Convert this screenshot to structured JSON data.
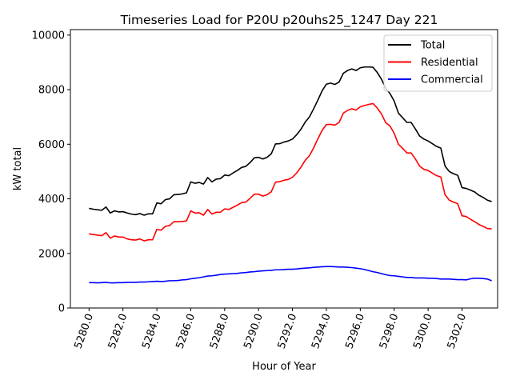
{
  "chart_data": {
    "type": "line",
    "title": "Timeseries Load for P20U p20uhs25_1247  Day 221",
    "xlabel": "Hour of Year",
    "ylabel": "kW total",
    "xlim": [
      5278.9,
      5304.1
    ],
    "ylim": [
      0,
      10200
    ],
    "grid": false,
    "legend_position": "top-right",
    "x_ticks": [
      5280,
      5282,
      5284,
      5286,
      5288,
      5290,
      5292,
      5294,
      5296,
      5298,
      5300,
      5302
    ],
    "x_tick_labels": [
      "5280.0",
      "5282.0",
      "5284.0",
      "5286.0",
      "5288.0",
      "5290.0",
      "5292.0",
      "5294.0",
      "5296.0",
      "5298.0",
      "5300.0",
      "5302.0"
    ],
    "y_ticks": [
      0,
      2000,
      4000,
      6000,
      8000,
      10000
    ],
    "y_tick_labels": [
      "0",
      "2000",
      "4000",
      "6000",
      "8000",
      "10000"
    ],
    "x": [
      5280.0,
      5280.25,
      5280.5,
      5280.75,
      5281.0,
      5281.25,
      5281.5,
      5281.75,
      5282.0,
      5282.25,
      5282.5,
      5282.75,
      5283.0,
      5283.25,
      5283.5,
      5283.75,
      5284.0,
      5284.25,
      5284.5,
      5284.75,
      5285.0,
      5285.25,
      5285.5,
      5285.75,
      5286.0,
      5286.25,
      5286.5,
      5286.75,
      5287.0,
      5287.25,
      5287.5,
      5287.75,
      5288.0,
      5288.25,
      5288.5,
      5288.75,
      5289.0,
      5289.25,
      5289.5,
      5289.75,
      5290.0,
      5290.25,
      5290.5,
      5290.75,
      5291.0,
      5291.25,
      5291.5,
      5291.75,
      5292.0,
      5292.25,
      5292.5,
      5292.75,
      5293.0,
      5293.25,
      5293.5,
      5293.75,
      5294.0,
      5294.25,
      5294.5,
      5294.75,
      5295.0,
      5295.25,
      5295.5,
      5295.75,
      5296.0,
      5296.25,
      5296.5,
      5296.75,
      5297.0,
      5297.25,
      5297.5,
      5297.75,
      5298.0,
      5298.25,
      5298.5,
      5298.75,
      5299.0,
      5299.25,
      5299.5,
      5299.75,
      5300.0,
      5300.25,
      5300.5,
      5300.75,
      5301.0,
      5301.25,
      5301.5,
      5301.75,
      5302.0,
      5302.25,
      5302.5,
      5302.75,
      5303.0,
      5303.25,
      5303.5,
      5303.75
    ],
    "series": [
      {
        "name": "Total",
        "color": "#000000",
        "values": [
          3650,
          3620,
          3600,
          3580,
          3700,
          3480,
          3560,
          3520,
          3530,
          3480,
          3440,
          3420,
          3460,
          3400,
          3450,
          3450,
          3850,
          3820,
          3970,
          4000,
          4150,
          4160,
          4180,
          4220,
          4620,
          4570,
          4600,
          4540,
          4780,
          4620,
          4720,
          4740,
          4870,
          4850,
          4950,
          5040,
          5150,
          5190,
          5330,
          5500,
          5520,
          5460,
          5520,
          5650,
          6010,
          6020,
          6080,
          6120,
          6190,
          6350,
          6550,
          6810,
          7000,
          7300,
          7620,
          7960,
          8200,
          8240,
          8190,
          8280,
          8600,
          8700,
          8760,
          8700,
          8800,
          8830,
          8830,
          8820,
          8630,
          8380,
          8050,
          7860,
          7580,
          7140,
          6970,
          6800,
          6800,
          6560,
          6300,
          6190,
          6120,
          6020,
          5920,
          5860,
          5200,
          5000,
          4920,
          4860,
          4410,
          4380,
          4320,
          4250,
          4130,
          4050,
          3950,
          3900
        ]
      },
      {
        "name": "Residential",
        "color": "#ff0000",
        "values": [
          2720,
          2690,
          2670,
          2650,
          2760,
          2560,
          2640,
          2600,
          2600,
          2530,
          2500,
          2490,
          2530,
          2460,
          2500,
          2500,
          2880,
          2850,
          2990,
          3020,
          3160,
          3160,
          3170,
          3190,
          3560,
          3480,
          3490,
          3400,
          3610,
          3440,
          3510,
          3510,
          3630,
          3610,
          3690,
          3770,
          3860,
          3880,
          4020,
          4170,
          4170,
          4100,
          4150,
          4260,
          4610,
          4630,
          4680,
          4710,
          4790,
          4950,
          5160,
          5410,
          5580,
          5870,
          6200,
          6510,
          6720,
          6730,
          6700,
          6800,
          7140,
          7240,
          7300,
          7250,
          7370,
          7420,
          7460,
          7490,
          7330,
          7110,
          6790,
          6670,
          6400,
          6000,
          5850,
          5680,
          5680,
          5460,
          5200,
          5080,
          5040,
          4940,
          4850,
          4800,
          4150,
          3950,
          3880,
          3820,
          3380,
          3350,
          3250,
          3160,
          3060,
          2990,
          2910,
          2900
        ]
      },
      {
        "name": "Commercial",
        "color": "#0000ff",
        "values": [
          930,
          930,
          920,
          930,
          940,
          920,
          920,
          930,
          930,
          940,
          940,
          940,
          950,
          950,
          960,
          970,
          980,
          970,
          980,
          1000,
          1000,
          1010,
          1030,
          1040,
          1070,
          1090,
          1110,
          1140,
          1170,
          1180,
          1200,
          1230,
          1240,
          1250,
          1260,
          1270,
          1290,
          1300,
          1320,
          1330,
          1350,
          1360,
          1370,
          1380,
          1400,
          1400,
          1410,
          1420,
          1420,
          1430,
          1450,
          1460,
          1470,
          1490,
          1500,
          1510,
          1520,
          1520,
          1510,
          1500,
          1500,
          1490,
          1480,
          1460,
          1440,
          1410,
          1370,
          1330,
          1300,
          1260,
          1220,
          1190,
          1180,
          1160,
          1140,
          1120,
          1120,
          1100,
          1100,
          1100,
          1090,
          1090,
          1080,
          1060,
          1060,
          1060,
          1050,
          1040,
          1040,
          1030,
          1070,
          1090,
          1090,
          1080,
          1060,
          1000
        ]
      }
    ]
  }
}
